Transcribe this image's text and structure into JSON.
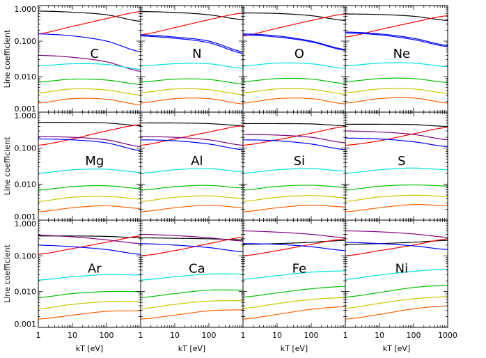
{
  "figure": {
    "ylabel": "Line coefficient",
    "xlabel": "kT [eV]",
    "y_tick_labels": [
      "0.001",
      "0.010",
      "0.100",
      "1.000"
    ],
    "x_tick_labels": [
      "1",
      "10",
      "100"
    ],
    "x_tick_labels_last": [
      "1",
      "10",
      "100",
      "1000"
    ]
  },
  "chart_data": {
    "type": "line",
    "layout": "4x3 grid of panels with shared axes",
    "x_scale": "log",
    "y_scale": "log",
    "xlim": [
      1,
      1000
    ],
    "ylim": [
      0.001,
      1.0
    ],
    "xlabel": "kT [eV]",
    "ylabel": "Line coefficient",
    "series_colors": [
      "#000000",
      "#ff0000",
      "#0000ff",
      "#0000ff",
      "#800080",
      "#00e0e0",
      "#00c000",
      "#c8c800",
      "#ff6000"
    ],
    "x": [
      1,
      10,
      100,
      1000
    ],
    "panels": [
      {
        "label": "C",
        "series": [
          {
            "color": "#000000",
            "values": [
              0.7,
              0.65,
              0.55,
              0.36
            ]
          },
          {
            "color": "#ff0000",
            "values": [
              0.16,
              0.26,
              0.43,
              0.68
            ]
          },
          {
            "color": "#0000ff",
            "values": [
              0.16,
              0.14,
              0.1,
              0.05
            ]
          },
          {
            "color": "#800080",
            "values": [
              0.04,
              0.035,
              0.026,
              0.014
            ]
          },
          {
            "color": "#00e0e0",
            "values": [
              0.02,
              0.023,
              0.022,
              0.016
            ]
          },
          {
            "color": "#00c000",
            "values": [
              0.007,
              0.0085,
              0.008,
              0.006
            ]
          },
          {
            "color": "#c8c800",
            "values": [
              0.0035,
              0.0045,
              0.0042,
              0.003
            ]
          },
          {
            "color": "#ff6000",
            "values": [
              0.0018,
              0.0024,
              0.0023,
              0.0016
            ]
          }
        ]
      },
      {
        "label": "N",
        "series": [
          {
            "color": "#000000",
            "values": [
              0.68,
              0.64,
              0.55,
              0.4
            ]
          },
          {
            "color": "#ff0000",
            "values": [
              0.15,
              0.24,
              0.4,
              0.62
            ]
          },
          {
            "color": "#0000ff",
            "values": [
              0.15,
              0.13,
              0.1,
              0.05
            ]
          },
          {
            "color": "#0000ff",
            "values": [
              0.14,
              0.12,
              0.09,
              0.045
            ]
          },
          {
            "color": "#00e0e0",
            "values": [
              0.02,
              0.023,
              0.023,
              0.017
            ]
          },
          {
            "color": "#00c000",
            "values": [
              0.007,
              0.0085,
              0.0083,
              0.0062
            ]
          },
          {
            "color": "#c8c800",
            "values": [
              0.0035,
              0.0045,
              0.0043,
              0.0031
            ]
          },
          {
            "color": "#ff6000",
            "values": [
              0.0018,
              0.0024,
              0.0024,
              0.0017
            ]
          }
        ]
      },
      {
        "label": "O",
        "series": [
          {
            "color": "#000000",
            "values": [
              0.62,
              0.6,
              0.52,
              0.38
            ]
          },
          {
            "color": "#ff0000",
            "values": [
              0.14,
              0.23,
              0.38,
              0.58
            ]
          },
          {
            "color": "#0000ff",
            "values": [
              0.16,
              0.14,
              0.1,
              0.058
            ]
          },
          {
            "color": "#0000ff",
            "values": [
              0.15,
              0.13,
              0.095,
              0.055
            ]
          },
          {
            "color": "#00e0e0",
            "values": [
              0.02,
              0.024,
              0.023,
              0.017
            ]
          },
          {
            "color": "#00c000",
            "values": [
              0.0072,
              0.0088,
              0.0085,
              0.0063
            ]
          },
          {
            "color": "#c8c800",
            "values": [
              0.0035,
              0.0045,
              0.0044,
              0.0032
            ]
          },
          {
            "color": "#ff6000",
            "values": [
              0.0018,
              0.0024,
              0.0024,
              0.0017
            ]
          }
        ]
      },
      {
        "label": "Ne",
        "series": [
          {
            "color": "#000000",
            "values": [
              0.58,
              0.56,
              0.5,
              0.38
            ]
          },
          {
            "color": "#ff0000",
            "values": [
              0.13,
              0.21,
              0.34,
              0.52
            ]
          },
          {
            "color": "#0000ff",
            "values": [
              0.18,
              0.16,
              0.12,
              0.075
            ]
          },
          {
            "color": "#0000ff",
            "values": [
              0.17,
              0.15,
              0.11,
              0.07
            ]
          },
          {
            "color": "#00e0e0",
            "values": [
              0.02,
              0.024,
              0.024,
              0.019
            ]
          },
          {
            "color": "#00c000",
            "values": [
              0.0072,
              0.0088,
              0.0088,
              0.0068
            ]
          },
          {
            "color": "#c8c800",
            "values": [
              0.0035,
              0.0045,
              0.0045,
              0.0034
            ]
          },
          {
            "color": "#ff6000",
            "values": [
              0.0018,
              0.0024,
              0.0025,
              0.0018
            ]
          }
        ]
      },
      {
        "label": "Mg",
        "series": [
          {
            "color": "#000000",
            "values": [
              0.52,
              0.52,
              0.5,
              0.42
            ]
          },
          {
            "color": "#ff0000",
            "values": [
              0.12,
              0.18,
              0.3,
              0.45
            ]
          },
          {
            "color": "#800080",
            "values": [
              0.21,
              0.2,
              0.17,
              0.11
            ]
          },
          {
            "color": "#0000ff",
            "values": [
              0.18,
              0.17,
              0.14,
              0.085
            ]
          },
          {
            "color": "#00e0e0",
            "values": [
              0.02,
              0.025,
              0.026,
              0.021
            ]
          },
          {
            "color": "#00c000",
            "values": [
              0.0068,
              0.0085,
              0.009,
              0.0075
            ]
          },
          {
            "color": "#c8c800",
            "values": [
              0.0033,
              0.0043,
              0.0046,
              0.0038
            ]
          },
          {
            "color": "#ff6000",
            "values": [
              0.0017,
              0.0022,
              0.0025,
              0.0021
            ]
          }
        ]
      },
      {
        "label": "Al",
        "series": [
          {
            "color": "#000000",
            "values": [
              0.5,
              0.5,
              0.48,
              0.42
            ]
          },
          {
            "color": "#ff0000",
            "values": [
              0.12,
              0.18,
              0.28,
              0.42
            ]
          },
          {
            "color": "#800080",
            "values": [
              0.21,
              0.2,
              0.17,
              0.12
            ]
          },
          {
            "color": "#0000ff",
            "values": [
              0.17,
              0.16,
              0.13,
              0.09
            ]
          },
          {
            "color": "#00e0e0",
            "values": [
              0.02,
              0.025,
              0.027,
              0.022
            ]
          },
          {
            "color": "#00c000",
            "values": [
              0.0068,
              0.0085,
              0.0092,
              0.0078
            ]
          },
          {
            "color": "#c8c800",
            "values": [
              0.0033,
              0.0043,
              0.0047,
              0.004
            ]
          },
          {
            "color": "#ff6000",
            "values": [
              0.0017,
              0.0022,
              0.0026,
              0.0022
            ]
          }
        ]
      },
      {
        "label": "Si",
        "series": [
          {
            "color": "#000000",
            "values": [
              0.48,
              0.48,
              0.47,
              0.42
            ]
          },
          {
            "color": "#ff0000",
            "values": [
              0.12,
              0.17,
              0.26,
              0.4
            ]
          },
          {
            "color": "#800080",
            "values": [
              0.24,
              0.23,
              0.2,
              0.14
            ]
          },
          {
            "color": "#0000ff",
            "values": [
              0.17,
              0.16,
              0.13,
              0.09
            ]
          },
          {
            "color": "#00e0e0",
            "values": [
              0.02,
              0.025,
              0.027,
              0.023
            ]
          },
          {
            "color": "#00c000",
            "values": [
              0.0068,
              0.0086,
              0.0093,
              0.0082
            ]
          },
          {
            "color": "#c8c800",
            "values": [
              0.0033,
              0.0043,
              0.0048,
              0.0042
            ]
          },
          {
            "color": "#ff6000",
            "values": [
              0.0017,
              0.0022,
              0.0026,
              0.0023
            ]
          }
        ]
      },
      {
        "label": "S",
        "series": [
          {
            "color": "#000000",
            "values": [
              0.46,
              0.46,
              0.45,
              0.4
            ]
          },
          {
            "color": "#ff0000",
            "values": [
              0.12,
              0.16,
              0.25,
              0.38
            ]
          },
          {
            "color": "#800080",
            "values": [
              0.3,
              0.28,
              0.24,
              0.17
            ]
          },
          {
            "color": "#0000ff",
            "values": [
              0.19,
              0.18,
              0.15,
              0.11
            ]
          },
          {
            "color": "#00e0e0",
            "values": [
              0.02,
              0.025,
              0.028,
              0.025
            ]
          },
          {
            "color": "#00c000",
            "values": [
              0.0068,
              0.0087,
              0.0095,
              0.0088
            ]
          },
          {
            "color": "#c8c800",
            "values": [
              0.0033,
              0.0044,
              0.0049,
              0.0045
            ]
          },
          {
            "color": "#ff6000",
            "values": [
              0.0017,
              0.0022,
              0.0027,
              0.0025
            ]
          }
        ]
      },
      {
        "label": "Ar",
        "series": [
          {
            "color": "#000000",
            "values": [
              0.36,
              0.36,
              0.35,
              0.32
            ]
          },
          {
            "color": "#ff0000",
            "values": [
              0.11,
              0.16,
              0.24,
              0.36
            ]
          },
          {
            "color": "#800080",
            "values": [
              0.38,
              0.34,
              0.28,
              0.22
            ]
          },
          {
            "color": "#0000ff",
            "values": [
              0.2,
              0.18,
              0.15,
              0.11
            ]
          },
          {
            "color": "#00e0e0",
            "values": [
              0.021,
              0.026,
              0.03,
              0.029
            ]
          },
          {
            "color": "#00c000",
            "values": [
              0.0068,
              0.0088,
              0.01,
              0.01
            ]
          },
          {
            "color": "#c8c800",
            "values": [
              0.0033,
              0.0044,
              0.0052,
              0.0052
            ]
          },
          {
            "color": "#ff6000",
            "values": [
              0.0017,
              0.0022,
              0.0028,
              0.0029
            ]
          }
        ]
      },
      {
        "label": "Ca",
        "series": [
          {
            "color": "#000000",
            "values": [
              0.32,
              0.31,
              0.3,
              0.28
            ]
          },
          {
            "color": "#ff0000",
            "values": [
              0.1,
              0.14,
              0.22,
              0.33
            ]
          },
          {
            "color": "#800080",
            "values": [
              0.4,
              0.37,
              0.32,
              0.26
            ]
          },
          {
            "color": "#0000ff",
            "values": [
              0.22,
              0.2,
              0.17,
              0.13
            ]
          },
          {
            "color": "#00e0e0",
            "values": [
              0.021,
              0.026,
              0.031,
              0.031
            ]
          },
          {
            "color": "#00c000",
            "values": [
              0.0068,
              0.0088,
              0.011,
              0.011
            ]
          },
          {
            "color": "#c8c800",
            "values": [
              0.0033,
              0.0044,
              0.0054,
              0.0056
            ]
          },
          {
            "color": "#ff6000",
            "values": [
              0.0017,
              0.0022,
              0.0029,
              0.0031
            ]
          }
        ]
      },
      {
        "label": "Fe",
        "series": [
          {
            "color": "#000000",
            "values": [
              0.21,
              0.22,
              0.24,
              0.27
            ]
          },
          {
            "color": "#ff0000",
            "values": [
              0.1,
              0.14,
              0.21,
              0.3
            ]
          },
          {
            "color": "#800080",
            "values": [
              0.5,
              0.46,
              0.4,
              0.32
            ]
          },
          {
            "color": "#0000ff",
            "values": [
              0.22,
              0.21,
              0.18,
              0.14
            ]
          },
          {
            "color": "#00e0e0",
            "values": [
              0.022,
              0.028,
              0.035,
              0.038
            ]
          },
          {
            "color": "#00c000",
            "values": [
              0.007,
              0.0092,
              0.012,
              0.014
            ]
          },
          {
            "color": "#c8c800",
            "values": [
              0.0034,
              0.0046,
              0.006,
              0.0068
            ]
          },
          {
            "color": "#ff6000",
            "values": [
              0.0017,
              0.0023,
              0.0032,
              0.0038
            ]
          }
        ]
      },
      {
        "label": "Ni",
        "series": [
          {
            "color": "#000000",
            "values": [
              0.21,
              0.22,
              0.24,
              0.27
            ]
          },
          {
            "color": "#ff0000",
            "values": [
              0.1,
              0.14,
              0.2,
              0.3
            ]
          },
          {
            "color": "#800080",
            "values": [
              0.5,
              0.47,
              0.41,
              0.33
            ]
          },
          {
            "color": "#0000ff",
            "values": [
              0.24,
              0.22,
              0.19,
              0.15
            ]
          },
          {
            "color": "#00e0e0",
            "values": [
              0.022,
              0.029,
              0.037,
              0.042
            ]
          },
          {
            "color": "#00c000",
            "values": [
              0.007,
              0.0094,
              0.013,
              0.015
            ]
          },
          {
            "color": "#c8c800",
            "values": [
              0.0034,
              0.0047,
              0.0063,
              0.0072
            ]
          },
          {
            "color": "#ff6000",
            "values": [
              0.0017,
              0.0023,
              0.0033,
              0.004
            ]
          }
        ]
      }
    ]
  }
}
